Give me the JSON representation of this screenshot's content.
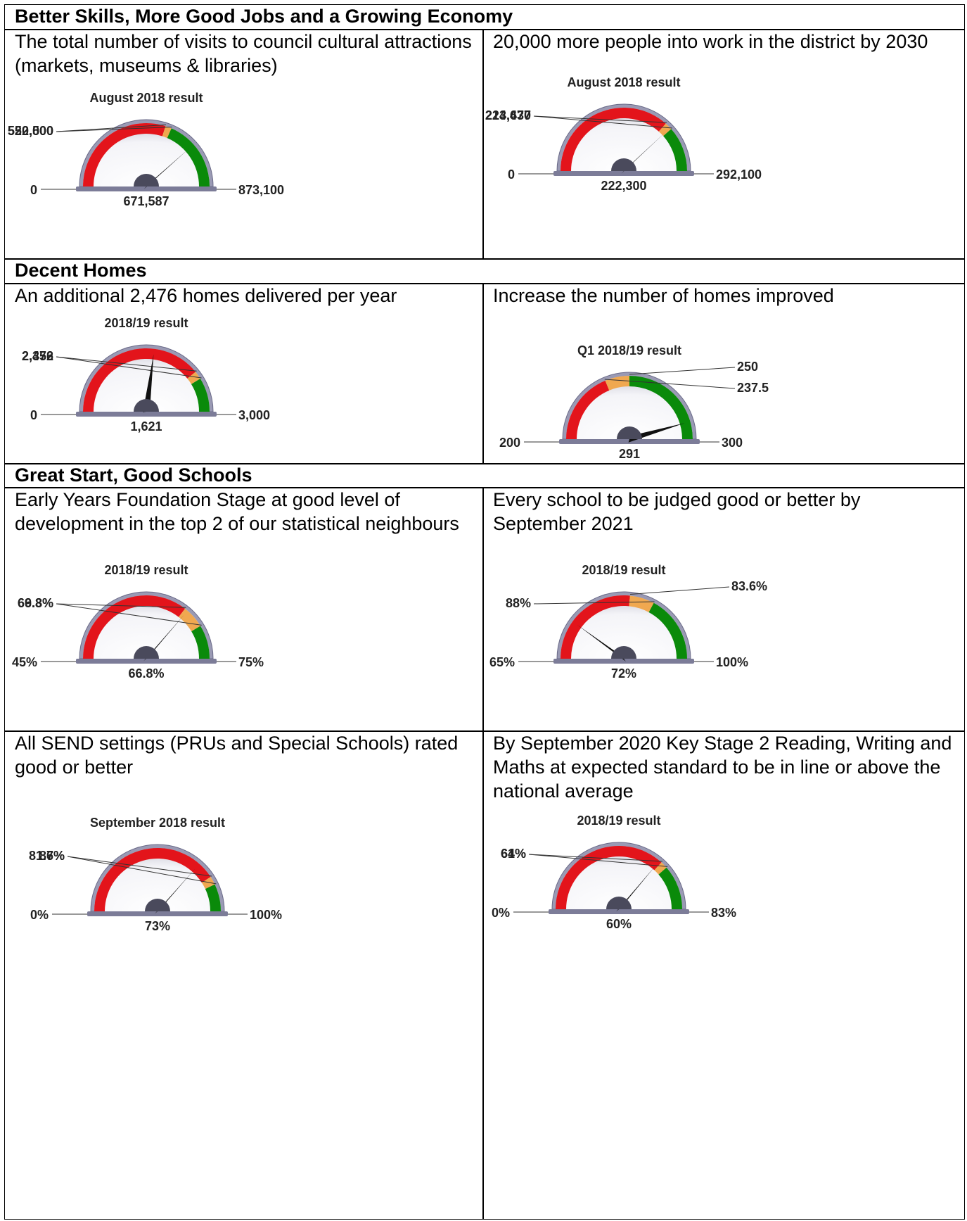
{
  "sections": [
    {
      "title": "Better Skills, More Good Jobs and a Growing Economy",
      "cells": [
        {
          "text": "The total number of visits to council cultural attractions (markets, museums & libraries)",
          "gauge": {
            "type": "gauge",
            "title": "August 2018 result",
            "ylim": [
              0,
              873100
            ],
            "yticks": [
              0,
              {
                "value": 522500,
                "label": "522,500"
              },
              {
                "value": 550000,
                "label": "550,000"
              },
              {
                "value": 873100,
                "label": "873,100"
              }
            ],
            "values": [
              671587
            ],
            "value_labels": [
              "671,587"
            ],
            "band_colors": [
              "#e3141b",
              "#f0a850",
              "#0a8a0a"
            ]
          }
        },
        {
          "text": "20,000 more people into work in the district by 2030",
          "gauge": {
            "type": "gauge",
            "title": "August 2018 result",
            "ylim": [
              0,
              292100
            ],
            "yticks": [
              0,
              {
                "value": 213437,
                "label": "213,437"
              },
              {
                "value": 224670,
                "label": "224,670"
              },
              {
                "value": 292100,
                "label": "292,100"
              }
            ],
            "values": [
              222300
            ],
            "value_labels": [
              "222,300"
            ],
            "band_colors": [
              "#e3141b",
              "#f0a850",
              "#0a8a0a"
            ]
          }
        }
      ]
    },
    {
      "title": "Decent Homes",
      "cells": [
        {
          "text": "An additional 2,476 homes delivered per year",
          "gauge": {
            "type": "gauge",
            "title": "2018/19 result",
            "ylim": [
              0,
              3000
            ],
            "yticks": [
              0,
              {
                "value": 2352,
                "label": "2,352"
              },
              {
                "value": 2476,
                "label": "2,476"
              },
              {
                "value": 3000,
                "label": "3,000"
              }
            ],
            "values": [
              1621
            ],
            "value_labels": [
              "1,621"
            ],
            "band_colors": [
              "#e3141b",
              "#f0a850",
              "#0a8a0a"
            ]
          }
        },
        {
          "text": "Increase the number of homes improved",
          "gauge": {
            "type": "gauge",
            "title": "Q1 2018/19 result",
            "ylim": [
              200,
              300
            ],
            "yticks": [
              200,
              237.5,
              250,
              300
            ],
            "values": [
              291
            ],
            "band_colors": [
              "#e3141b",
              "#f0a850",
              "#0a8a0a"
            ]
          }
        }
      ]
    },
    {
      "title": "Great Start, Good Schools",
      "cells": [
        {
          "text": "Early Years Foundation Stage at good level of development in the top 2 of our statistical neighbours",
          "gauge": {
            "type": "gauge",
            "title": "2018/19 result",
            "ylim": [
              45,
              75
            ],
            "yticks": [
              {
                "value": 45,
                "label": "45%"
              },
              {
                "value": 66.3,
                "label": "66.3%"
              },
              {
                "value": 69.8,
                "label": "69.8%"
              },
              {
                "value": 75,
                "label": "75%"
              }
            ],
            "values": [
              66.8
            ],
            "value_labels": [
              "66.8%"
            ],
            "band_colors": [
              "#e3141b",
              "#f0a850",
              "#0a8a0a"
            ]
          }
        },
        {
          "text": "Every school to be judged good or better by September 2021",
          "gauge": {
            "type": "gauge",
            "title": "2018/19 result",
            "ylim": [
              65,
              100
            ],
            "yticks": [
              {
                "value": 65,
                "label": "65%"
              },
              {
                "value": 83.6,
                "label": "83.6%"
              },
              {
                "value": 88,
                "label": "88%"
              },
              {
                "value": 100,
                "label": "100%"
              }
            ],
            "values": [
              72
            ],
            "value_labels": [
              "72%"
            ],
            "band_colors": [
              "#e3141b",
              "#f0a850",
              "#0a8a0a"
            ]
          }
        },
        {
          "text": "All SEND settings (PRUs and Special Schools) rated good or better",
          "gauge": {
            "type": "gauge",
            "title": "September 2018 result",
            "ylim": [
              0,
              100
            ],
            "yticks": [
              {
                "value": 0,
                "label": "0%"
              },
              {
                "value": 81.7,
                "label": "81.7%"
              },
              {
                "value": 86,
                "label": "86%"
              },
              {
                "value": 100,
                "label": "100%"
              }
            ],
            "values": [
              73
            ],
            "value_labels": [
              "73%"
            ],
            "band_colors": [
              "#e3141b",
              "#f0a850",
              "#0a8a0a"
            ]
          }
        },
        {
          "text": "By September 2020 Key Stage 2 Reading, Writing and Maths at expected standard to be in line or above the national average",
          "gauge": {
            "type": "gauge",
            "title": "2018/19 result",
            "ylim": [
              0,
              83
            ],
            "yticks": [
              {
                "value": 0,
                "label": "0%"
              },
              {
                "value": 61,
                "label": "61%"
              },
              {
                "value": 64,
                "label": "64%"
              },
              {
                "value": 83,
                "label": "83%"
              }
            ],
            "values": [
              60
            ],
            "value_labels": [
              "60%"
            ],
            "band_colors": [
              "#e3141b",
              "#f0a850",
              "#0a8a0a"
            ]
          }
        }
      ]
    }
  ]
}
